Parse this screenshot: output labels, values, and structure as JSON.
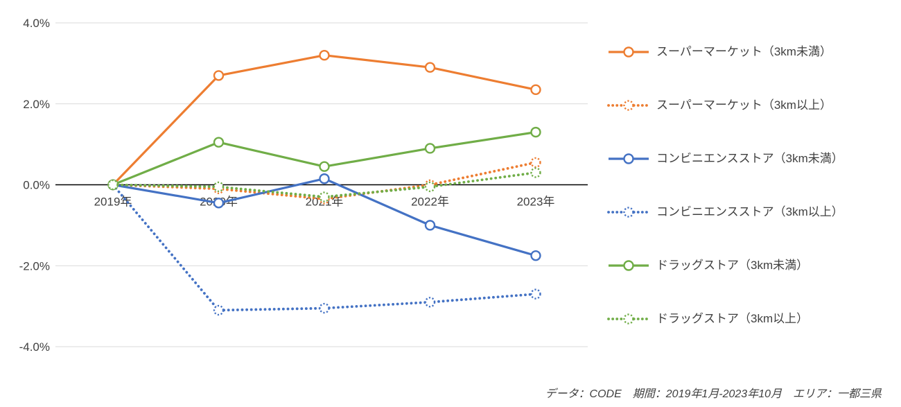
{
  "chart_data": {
    "type": "line",
    "title": "",
    "x": [
      "2019年",
      "2020年",
      "2021年",
      "2022年",
      "2023年"
    ],
    "ylim": [
      -4.0,
      4.0
    ],
    "yticks": [
      4.0,
      2.0,
      0.0,
      -2.0,
      -4.0
    ],
    "ytick_labels": [
      "4.0%",
      "2.0%",
      "0.0%",
      "-2.0%",
      "-4.0%"
    ],
    "grid": "horizontal",
    "legend_position": "right",
    "series": [
      {
        "name": "スーパーマーケット（3km未満）",
        "color": "#ED7D31",
        "style": "solid",
        "values": [
          0.0,
          2.7,
          3.2,
          2.9,
          2.35
        ]
      },
      {
        "name": "スーパーマーケット（3km以上）",
        "color": "#ED7D31",
        "style": "dotted",
        "values": [
          0.0,
          -0.1,
          -0.35,
          0.0,
          0.55
        ]
      },
      {
        "name": "コンビニエンスストア（3km未満）",
        "color": "#4472C4",
        "style": "solid",
        "values": [
          0.0,
          -0.45,
          0.15,
          -1.0,
          -1.75
        ]
      },
      {
        "name": "コンビニエンスストア（3km以上）",
        "color": "#4472C4",
        "style": "dotted",
        "values": [
          0.0,
          -3.1,
          -3.05,
          -2.9,
          -2.7
        ]
      },
      {
        "name": "ドラッグストア（3km未満）",
        "color": "#70AD47",
        "style": "solid",
        "values": [
          0.0,
          1.05,
          0.45,
          0.9,
          1.3
        ]
      },
      {
        "name": "ドラッグストア（3km以上）",
        "color": "#70AD47",
        "style": "dotted",
        "values": [
          0.0,
          -0.05,
          -0.3,
          -0.05,
          0.3
        ]
      }
    ]
  },
  "footer": {
    "text": "データ：CODE　期間：2019年1月-2023年10月　エリア：一都三県"
  },
  "colors": {
    "grid": "#d9d9d9",
    "axis": "#000000",
    "text": "#404040"
  }
}
